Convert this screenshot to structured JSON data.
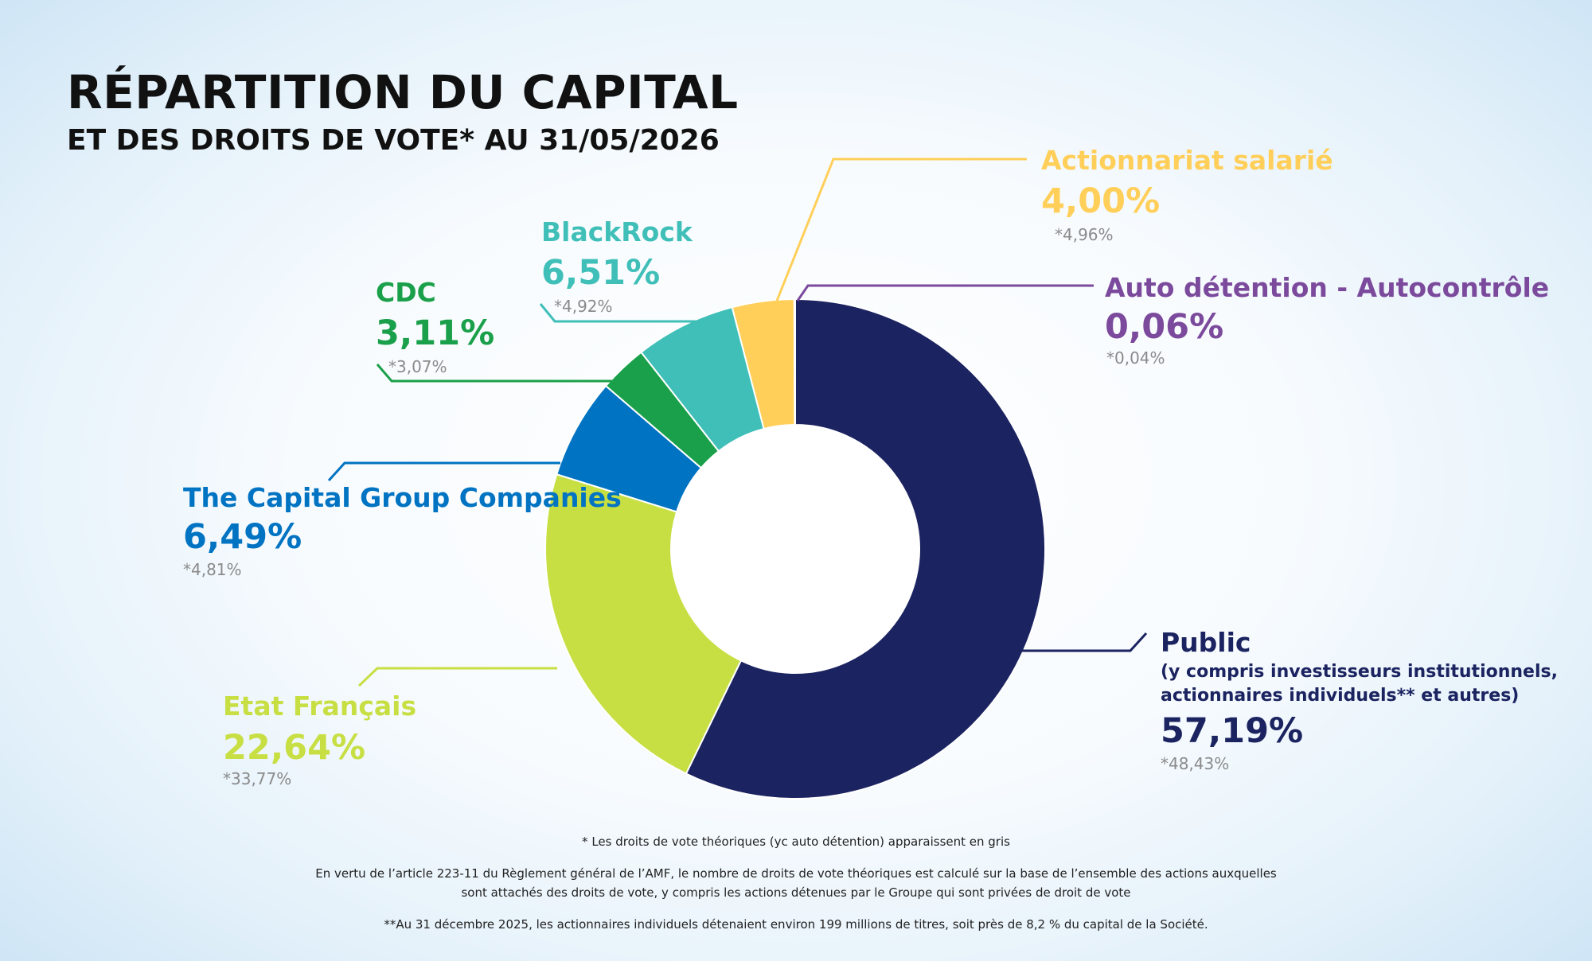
{
  "header": {
    "title": "RÉPARTITION DU CAPITAL",
    "subtitle": "ET DES DROITS DE VOTE* AU 31/05/2026"
  },
  "chart_data": {
    "type": "pie",
    "variant": "donut",
    "title": "RÉPARTITION DU CAPITAL",
    "subtitle": "ET DES DROITS DE VOTE* AU 31/05/2026",
    "unit": "%",
    "slices": [
      {
        "name": "Public",
        "value": 57.19,
        "value_label": "57,19%",
        "voting_rights": 48.43,
        "voting_label": "*48,43%",
        "note_line1": "(y compris investisseurs institutionnels,",
        "note_line2": "actionnaires individuels** et autres)",
        "color": "#1b2360"
      },
      {
        "name": "Etat Français",
        "value": 22.64,
        "value_label": "22,64%",
        "voting_rights": 33.77,
        "voting_label": "*33,77%",
        "color": "#c8df44"
      },
      {
        "name": "The Capital Group Companies",
        "value": 6.49,
        "value_label": "6,49%",
        "voting_rights": 4.81,
        "voting_label": "*4,81%",
        "color": "#0073c2"
      },
      {
        "name": "CDC",
        "value": 3.11,
        "value_label": "3,11%",
        "voting_rights": 3.07,
        "voting_label": "*3,07%",
        "color": "#1aa04a"
      },
      {
        "name": "BlackRock",
        "value": 6.51,
        "value_label": "6,51%",
        "voting_rights": 4.92,
        "voting_label": "*4,92%",
        "color": "#40bfb9"
      },
      {
        "name": "Actionnariat salarié",
        "value": 4.0,
        "value_label": "4,00%",
        "voting_rights": 4.96,
        "voting_label": "*4,96%",
        "color": "#ffcf5a"
      },
      {
        "name": "Auto détention - Autocontrôle",
        "value": 0.06,
        "value_label": "0,06%",
        "voting_rights": 0.04,
        "voting_label": "*0,04%",
        "color": "#7b4a9c"
      }
    ]
  },
  "footnotes": {
    "line1": "* Les droits de vote théoriques (yc auto détention) apparaissent en gris",
    "line2": "En vertu de l’article 223-11 du Règlement général de l’AMF, le nombre de droits de vote théoriques est calculé sur la base de l’ensemble des actions auxquelles",
    "line3": "sont attachés des droits de vote, y compris les actions détenues par le Groupe qui sont privées de droit de vote",
    "line4": "**Au 31 décembre 2025, les actionnaires individuels détenaient environ 199 millions de titres, soit près de 8,2 % du capital de la Société."
  }
}
